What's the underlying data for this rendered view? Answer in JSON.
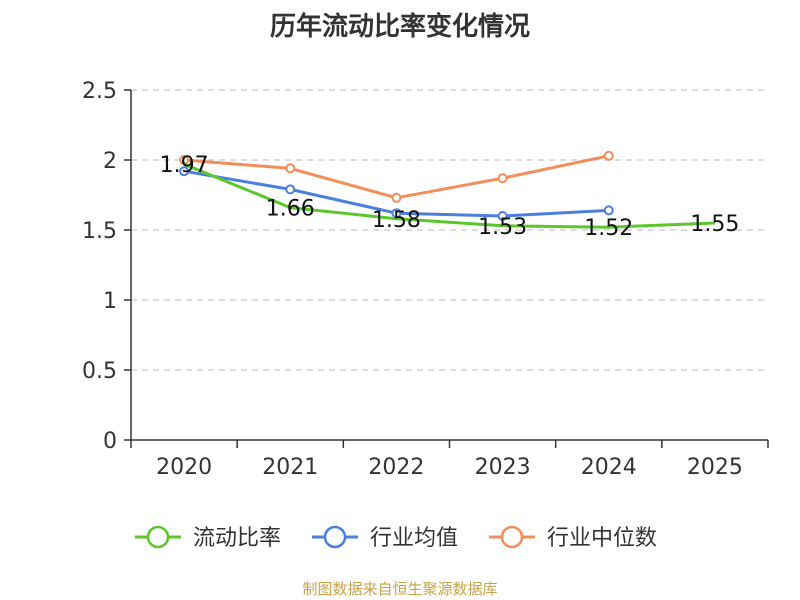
{
  "footer": {
    "credit": "制图数据来自恒生聚源数据库"
  },
  "colors": {
    "current_ratio": "#5cc72c",
    "industry_avg": "#4a7fde",
    "industry_median": "#f28e59",
    "grid": "#c8c8c8",
    "axis": "#333333"
  },
  "chart_data": {
    "type": "line",
    "title": "历年流动比率变化情况",
    "categories": [
      "2020",
      "2021",
      "2022",
      "2023",
      "2024",
      "2025"
    ],
    "ylim": [
      0,
      2.5
    ],
    "yticks": [
      "0",
      "0.5",
      "1",
      "1.5",
      "2",
      "2.5"
    ],
    "grid": true,
    "legend_position": "bottom",
    "series": [
      {
        "name": "流动比率",
        "key": "current_ratio",
        "values": [
          1.97,
          1.66,
          1.58,
          1.53,
          1.52,
          1.55
        ],
        "labels": [
          "1.97",
          "1.66",
          "1.58",
          "1.53",
          "1.52",
          "1.55"
        ]
      },
      {
        "name": "行业均值",
        "key": "industry_avg",
        "values": [
          1.92,
          1.79,
          1.62,
          1.6,
          1.64,
          null
        ]
      },
      {
        "name": "行业中位数",
        "key": "industry_median",
        "values": [
          2.0,
          1.94,
          1.73,
          1.87,
          2.03,
          null
        ]
      }
    ]
  }
}
